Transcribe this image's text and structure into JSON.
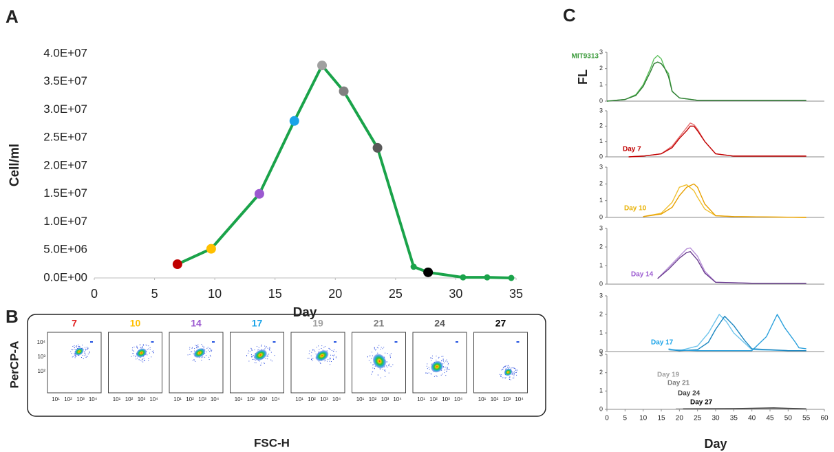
{
  "panel_labels": [
    "A",
    "B",
    "C"
  ],
  "chart_data": [
    {
      "type": "line",
      "x_label": "Day",
      "y_label": "Cell/ml",
      "xlim": [
        0,
        35
      ],
      "xticks": [
        0,
        5,
        10,
        15,
        20,
        25,
        30,
        35
      ],
      "ylim": [
        0,
        40000000
      ],
      "yticks": [
        {
          "value": 0,
          "label": "0.0E+00"
        },
        {
          "value": 5000000,
          "label": "5.0E+06"
        },
        {
          "value": 10000000,
          "label": "1.0E+07"
        },
        {
          "value": 15000000,
          "label": "1.5E+07"
        },
        {
          "value": 20000000,
          "label": "2.0E+07"
        },
        {
          "value": 25000000,
          "label": "2.5E+07"
        },
        {
          "value": 30000000,
          "label": "3.0E+07"
        },
        {
          "value": 35000000,
          "label": "3.5E+07"
        },
        {
          "value": 40000000,
          "label": "4.0E+07"
        }
      ],
      "series": [
        {
          "color": "#1aa34a",
          "x": [
            6.9,
            9.7,
            13.7,
            16.6,
            18.9,
            20.7,
            23.5,
            26.5,
            27.7,
            30.6,
            32.6,
            34.6
          ],
          "values": [
            2450000,
            5200000,
            15000000,
            28000000,
            37900000,
            33300000,
            23200000,
            2000000,
            1000000,
            100000,
            100000,
            0
          ],
          "point_colors": [
            "#c00000",
            "#ffc000",
            "#9b59d0",
            "#1aa3e8",
            "#a0a0a0",
            "#808080",
            "#595959",
            "#1aa34a",
            "#000000",
            "#1aa34a",
            "#1aa34a",
            "#1aa34a"
          ]
        }
      ]
    },
    {
      "type": "line",
      "xlim": [
        0,
        60
      ],
      "ylim": [
        0,
        3
      ],
      "yticks": [
        0,
        1,
        2,
        3
      ],
      "y_label": "FL",
      "labels": [
        {
          "text": "MIT9313",
          "color": "#3a9a3a"
        }
      ],
      "series": [
        {
          "color": "#5cc05c",
          "x": [
            0,
            5,
            8,
            10,
            12,
            13,
            14,
            15,
            16,
            17,
            18,
            20,
            25,
            30,
            40,
            55
          ],
          "values": [
            0,
            0.1,
            0.4,
            1,
            2,
            2.6,
            2.8,
            2.6,
            2,
            1.7,
            0.6,
            0.2,
            0.05,
            0.05,
            0.05,
            0.05
          ]
        },
        {
          "color": "#2e7d32",
          "x": [
            0,
            5,
            8,
            10,
            12,
            13,
            14,
            15,
            16,
            17,
            18,
            20,
            25,
            30,
            40,
            55
          ],
          "values": [
            0,
            0.1,
            0.35,
            0.9,
            1.8,
            2.3,
            2.4,
            2.3,
            2,
            1.5,
            0.6,
            0.2,
            0.05,
            0.05,
            0.05,
            0.05
          ]
        }
      ]
    },
    {
      "type": "line",
      "xlim": [
        0,
        60
      ],
      "ylim": [
        0,
        3
      ],
      "yticks": [
        0,
        1,
        2,
        3
      ],
      "labels": [
        {
          "text": "Day 7",
          "color": "#c00000"
        }
      ],
      "series": [
        {
          "color": "#e87070",
          "x": [
            6,
            10,
            15,
            18,
            20,
            22,
            23,
            24,
            25,
            27,
            30,
            35,
            45,
            55
          ],
          "values": [
            0,
            0.05,
            0.2,
            0.7,
            1.3,
            1.9,
            2.2,
            2.1,
            1.8,
            1,
            0.2,
            0.05,
            0.05,
            0.05
          ]
        },
        {
          "color": "#c00000",
          "x": [
            6,
            10,
            15,
            18,
            20,
            22,
            23,
            24,
            25,
            27,
            30,
            35,
            45,
            55
          ],
          "values": [
            0,
            0.05,
            0.2,
            0.6,
            1.2,
            1.7,
            2,
            2,
            1.7,
            1,
            0.2,
            0.05,
            0.05,
            0.05
          ]
        }
      ]
    },
    {
      "type": "line",
      "xlim": [
        0,
        60
      ],
      "ylim": [
        0,
        3
      ],
      "yticks": [
        0,
        1,
        2,
        3
      ],
      "labels": [
        {
          "text": "Day 10",
          "color": "#e8b000"
        }
      ],
      "series": [
        {
          "color": "#f0c030",
          "x": [
            10,
            15,
            18,
            20,
            22,
            24,
            25,
            27,
            30,
            35,
            55
          ],
          "values": [
            0.05,
            0.25,
            0.9,
            1.8,
            1.95,
            1.6,
            1.2,
            0.5,
            0.1,
            0.05,
            0
          ]
        },
        {
          "color": "#e8a000",
          "x": [
            10,
            15,
            18,
            20,
            22,
            24,
            25,
            27,
            30,
            35,
            55
          ],
          "values": [
            0.05,
            0.2,
            0.6,
            1.3,
            1.8,
            2,
            1.8,
            0.8,
            0.1,
            0.05,
            0
          ]
        }
      ]
    },
    {
      "type": "line",
      "xlim": [
        0,
        60
      ],
      "ylim": [
        0,
        3
      ],
      "yticks": [
        0,
        1,
        2,
        3
      ],
      "labels": [
        {
          "text": "Day 14",
          "color": "#9b59d0"
        }
      ],
      "series": [
        {
          "color": "#b890d8",
          "x": [
            14,
            17,
            20,
            22,
            23,
            25,
            27,
            30,
            40,
            55
          ],
          "values": [
            0.3,
            0.9,
            1.5,
            1.9,
            1.95,
            1.5,
            0.7,
            0.1,
            0.05,
            0.05
          ]
        },
        {
          "color": "#6a3d8f",
          "x": [
            14,
            17,
            20,
            22,
            23,
            25,
            27,
            30,
            40,
            55
          ],
          "values": [
            0.3,
            0.8,
            1.4,
            1.7,
            1.75,
            1.3,
            0.6,
            0.1,
            0.05,
            0.05
          ]
        }
      ]
    },
    {
      "type": "line",
      "xlim": [
        0,
        60
      ],
      "ylim": [
        0,
        3
      ],
      "yticks": [
        0,
        1,
        2,
        3
      ],
      "labels": [
        {
          "text": "Day 17",
          "color": "#1aa3e8"
        }
      ],
      "series": [
        {
          "color": "#6fc4ec",
          "x": [
            17,
            20,
            25,
            28,
            31,
            33,
            35,
            40,
            50,
            55
          ],
          "values": [
            0.15,
            0.05,
            0.3,
            1,
            2,
            1.6,
            1,
            0.1,
            0.05,
            0.05
          ]
        },
        {
          "color": "#1a86c0",
          "x": [
            17,
            20,
            25,
            28,
            30,
            32.5,
            35,
            38,
            40,
            50,
            55
          ],
          "values": [
            0.1,
            0.05,
            0.1,
            0.5,
            1.2,
            1.9,
            1.4,
            0.6,
            0.15,
            0.05,
            0.05
          ]
        },
        {
          "color": "#2aa0dc",
          "x": [
            17,
            25,
            30,
            35,
            40,
            44,
            47,
            49,
            52,
            53,
            55
          ],
          "values": [
            0.1,
            0.05,
            0.05,
            0.05,
            0.05,
            0.8,
            2,
            1.3,
            0.5,
            0.2,
            0.15
          ]
        }
      ]
    },
    {
      "type": "line",
      "xlim": [
        0,
        60
      ],
      "ylim": [
        0,
        3
      ],
      "yticks": [
        0,
        1,
        2,
        3
      ],
      "xticks": [
        0,
        5,
        10,
        15,
        20,
        25,
        30,
        35,
        40,
        45,
        50,
        55,
        60
      ],
      "x_label": "Day",
      "labels": [
        {
          "text": "Day 19",
          "color": "#a0a0a0"
        },
        {
          "text": "Day 21",
          "color": "#808080"
        },
        {
          "text": "Day 24",
          "color": "#404040"
        },
        {
          "text": "Day 27",
          "color": "#000000"
        }
      ],
      "series": [
        {
          "color": "#a0a0a0",
          "x": [
            19,
            30,
            45,
            55
          ],
          "values": [
            0.03,
            0.03,
            0.06,
            0.03
          ]
        },
        {
          "color": "#404040",
          "x": [
            21,
            35,
            46,
            55
          ],
          "values": [
            0.03,
            0.04,
            0.08,
            0.03
          ]
        }
      ]
    }
  ],
  "flow_panel": {
    "labels": [
      {
        "text": "7",
        "color": "#e02020"
      },
      {
        "text": "10",
        "color": "#ffc000"
      },
      {
        "text": "14",
        "color": "#9b59d0"
      },
      {
        "text": "17",
        "color": "#1aa3e8"
      },
      {
        "text": "19",
        "color": "#a0a0a0"
      },
      {
        "text": "21",
        "color": "#808080"
      },
      {
        "text": "24",
        "color": "#595959"
      },
      {
        "text": "27",
        "color": "#000000"
      }
    ],
    "y_ticks": [
      "10⁴",
      "10³",
      "10²"
    ],
    "x_ticks": [
      "10¹",
      "10²",
      "10³",
      "10⁴"
    ],
    "y_label": "PerCP-A",
    "x_label": "FSC-H"
  }
}
